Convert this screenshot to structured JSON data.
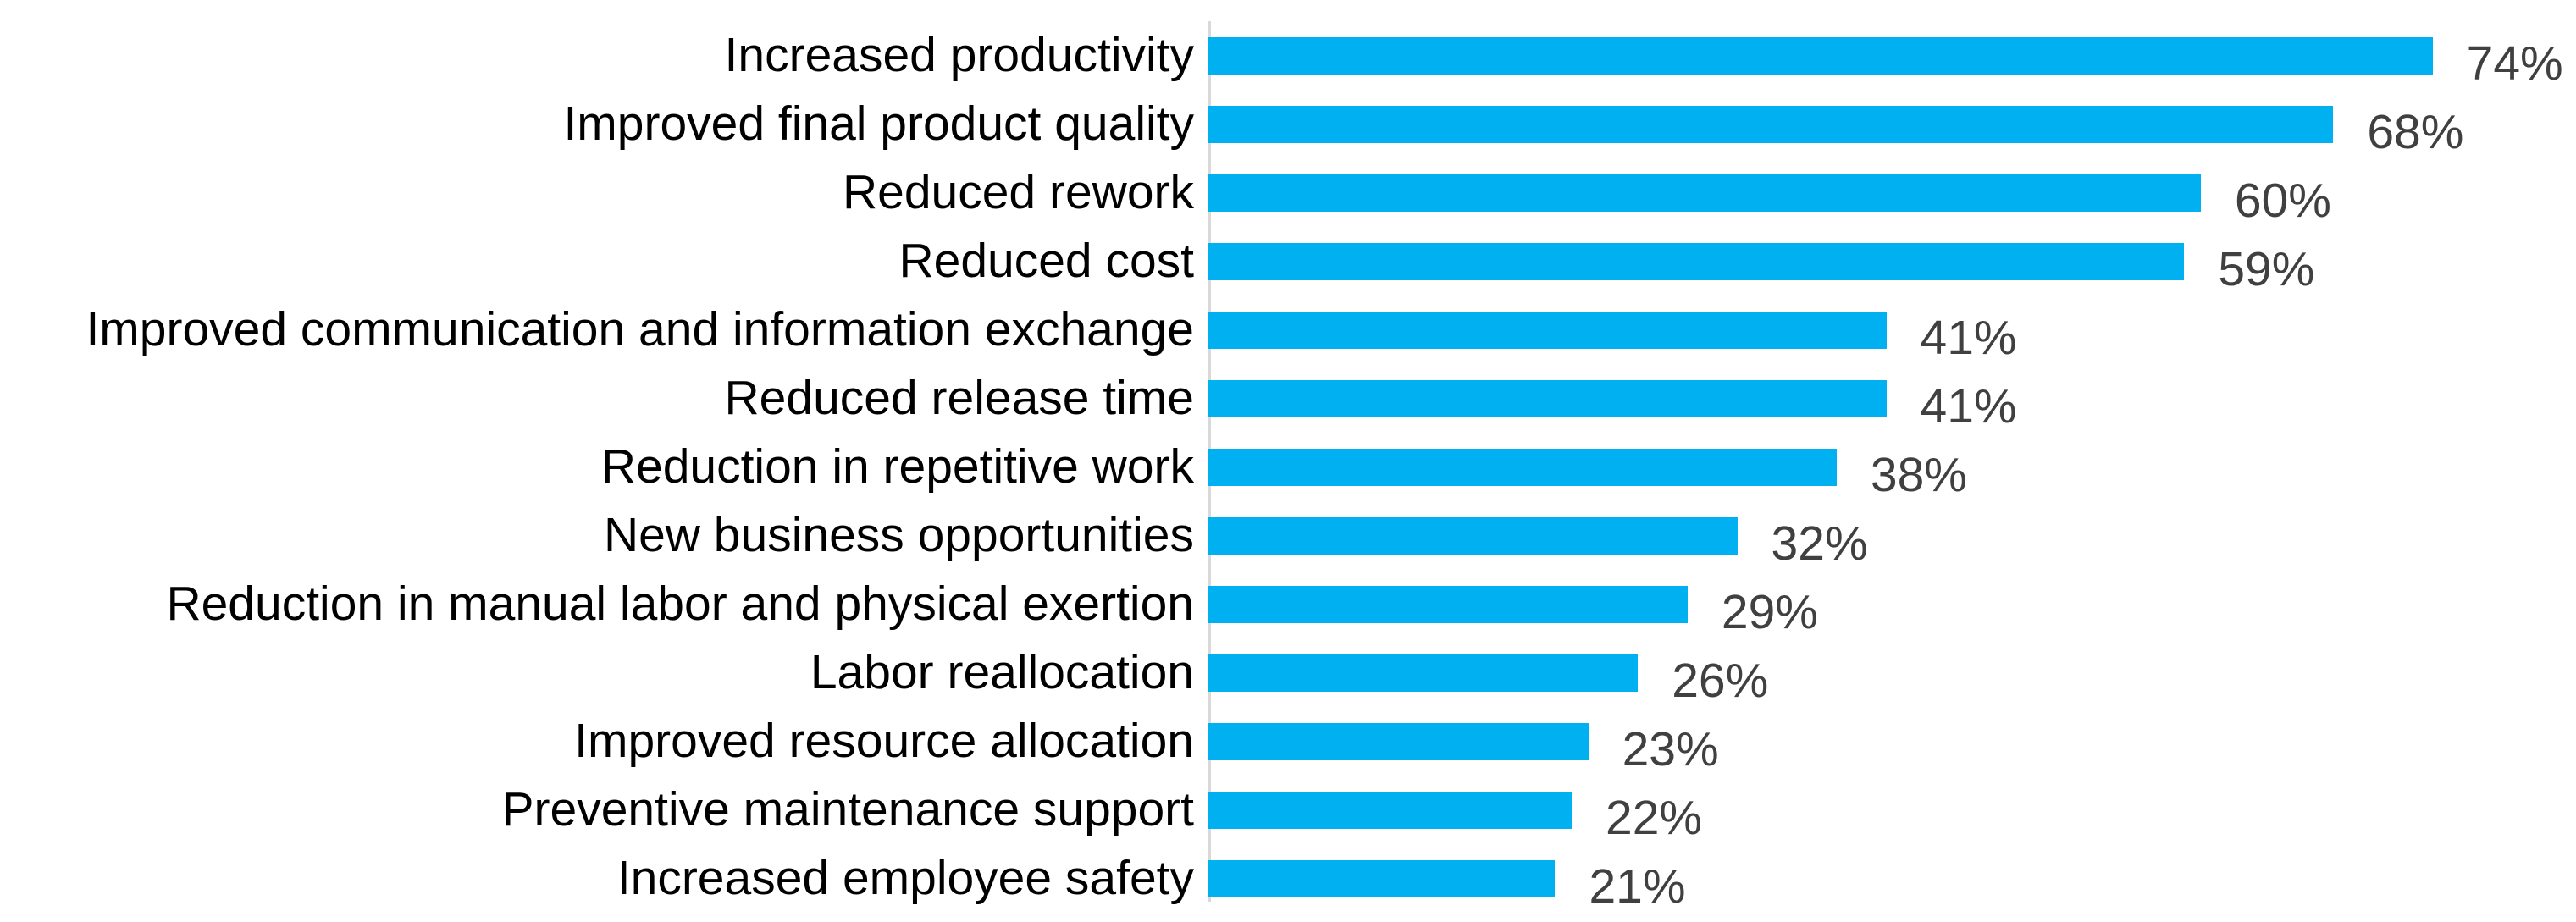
{
  "chart_data": {
    "type": "bar",
    "orientation": "horizontal",
    "title": "",
    "xlabel": "",
    "ylabel": "",
    "xlim": [
      0,
      80
    ],
    "grid": false,
    "legend": false,
    "bar_color": "#00B0F0",
    "category_label_color": "#000000",
    "value_label_color": "#404040",
    "axis_line_color": "#D9D9D9",
    "categories": [
      "Increased productivity",
      "Improved final product quality",
      "Reduced rework",
      "Reduced cost",
      "Improved communication and information exchange",
      "Reduced release time",
      "Reduction in repetitive work",
      "New business opportunities",
      "Reduction in manual labor and physical exertion",
      "Labor reallocation",
      "Improved resource allocation",
      "Preventive maintenance support",
      "Increased employee safety"
    ],
    "values": [
      74,
      68,
      60,
      59,
      41,
      41,
      38,
      32,
      29,
      26,
      23,
      22,
      21
    ],
    "value_labels": [
      "74%",
      "68%",
      "60%",
      "59%",
      "41%",
      "41%",
      "38%",
      "32%",
      "29%",
      "26%",
      "23%",
      "22%",
      "21%"
    ]
  }
}
